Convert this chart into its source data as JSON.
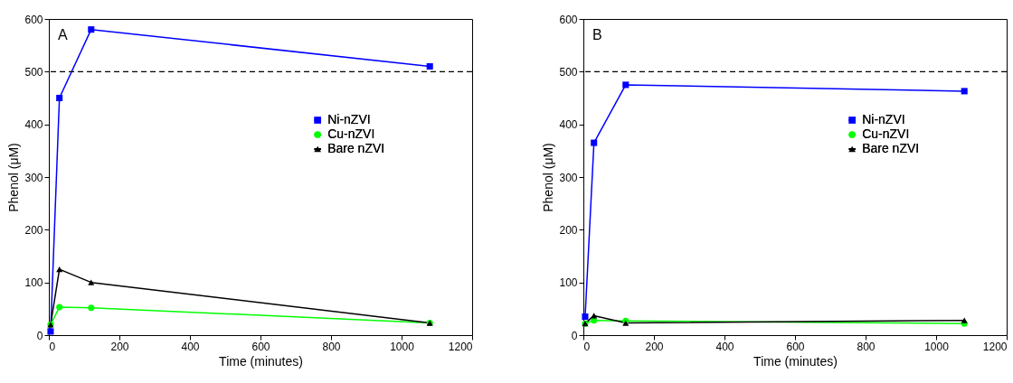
{
  "chart_data": [
    {
      "type": "line",
      "xlabel": "Time (minutes)",
      "ylabel": "Phenol (μM)",
      "annotations": [
        "A"
      ],
      "x": [
        5,
        30,
        120,
        1080
      ],
      "xlim": [
        0,
        1200
      ],
      "xticks": [
        0,
        200,
        400,
        600,
        800,
        1000,
        1200
      ],
      "ylim": [
        0,
        600
      ],
      "yticks": [
        0,
        100,
        200,
        300,
        400,
        500,
        600
      ],
      "grid": false,
      "legend": "right",
      "ref_lines": [
        {
          "axis": "y",
          "value": 500,
          "color": "#000000",
          "line_style": "dashed"
        }
      ],
      "series": [
        {
          "name": "Ni-nZVI",
          "color": "#0000ff",
          "marker": "square",
          "values": [
            7,
            450,
            580,
            510
          ]
        },
        {
          "name": "Cu-nZVI",
          "color": "#00ff00",
          "marker": "circle",
          "values": [
            20,
            53,
            52,
            23
          ]
        },
        {
          "name": "Bare nZVI",
          "color": "#000000",
          "marker": "triangle",
          "values": [
            20,
            125,
            100,
            23
          ]
        }
      ]
    },
    {
      "type": "line",
      "xlabel": "Time (minutes)",
      "ylabel": "Phenol (μM)",
      "annotations": [
        "B"
      ],
      "x": [
        5,
        30,
        120,
        1080
      ],
      "xlim": [
        0,
        1200
      ],
      "xticks": [
        0,
        200,
        400,
        600,
        800,
        1000,
        1200
      ],
      "ylim": [
        0,
        600
      ],
      "yticks": [
        0,
        100,
        200,
        300,
        400,
        500,
        600
      ],
      "grid": false,
      "legend": "right",
      "ref_lines": [
        {
          "axis": "y",
          "value": 500,
          "color": "#000000",
          "line_style": "dashed"
        }
      ],
      "series": [
        {
          "name": "Ni-nZVI",
          "color": "#0000ff",
          "marker": "square",
          "values": [
            35,
            365,
            475,
            463
          ]
        },
        {
          "name": "Cu-nZVI",
          "color": "#00ff00",
          "marker": "circle",
          "values": [
            22,
            28,
            27,
            22
          ]
        },
        {
          "name": "Bare nZVI",
          "color": "#000000",
          "marker": "triangle",
          "values": [
            22,
            37,
            23,
            28
          ]
        }
      ]
    }
  ]
}
